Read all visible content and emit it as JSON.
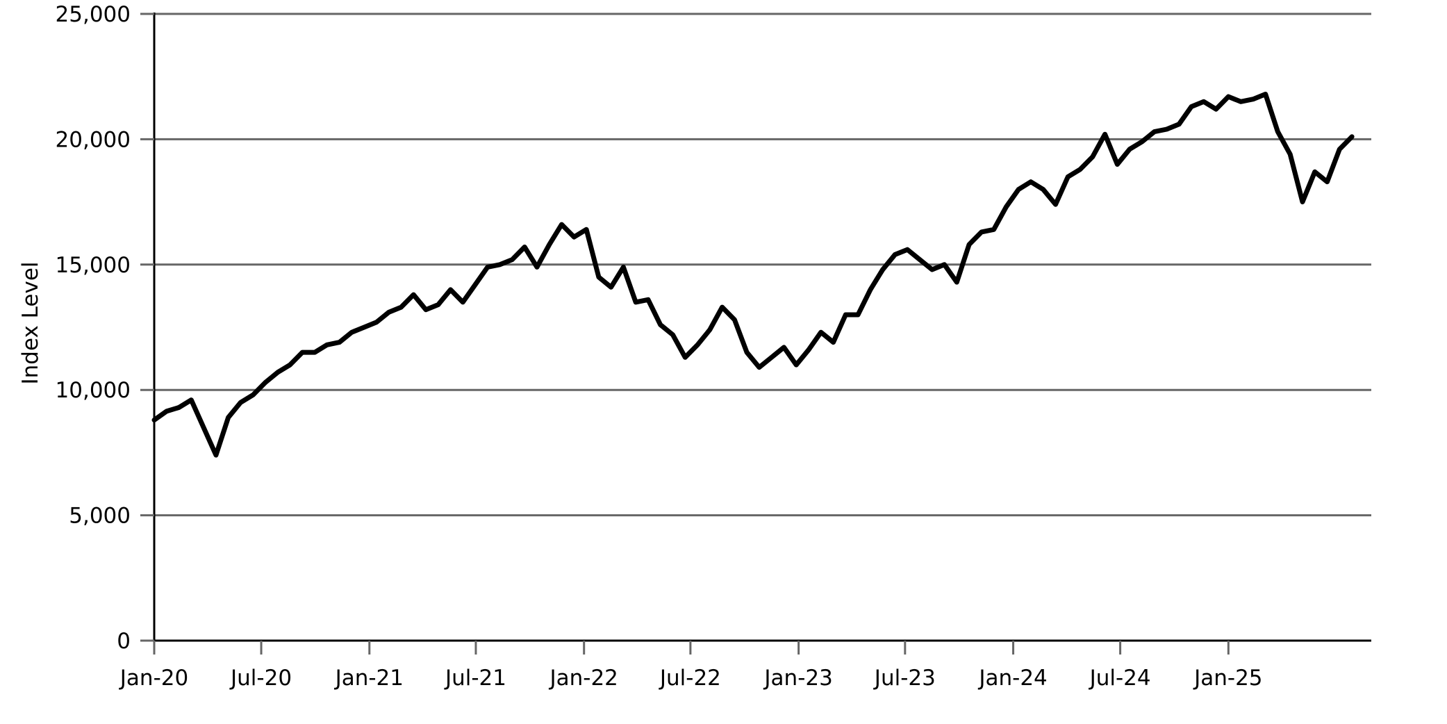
{
  "chart_data": {
    "type": "line",
    "title": "",
    "xlabel": "",
    "ylabel": "Index Level",
    "ylim": [
      0,
      25000
    ],
    "xlim": [
      "2020-01",
      "2025-09"
    ],
    "grid": "horizontal",
    "legend": "none",
    "line_color": "#000000",
    "grid_color": "#666666",
    "y_ticks": [
      {
        "value": 0,
        "label": "0"
      },
      {
        "value": 5000,
        "label": "5,000"
      },
      {
        "value": 10000,
        "label": "10,000"
      },
      {
        "value": 15000,
        "label": "15,000"
      },
      {
        "value": 20000,
        "label": "20,000"
      },
      {
        "value": 25000,
        "label": "25,000"
      }
    ],
    "x_ticks": [
      {
        "value": "2020-01",
        "label": "Jan-20"
      },
      {
        "value": "2020-07",
        "label": "Jul-20"
      },
      {
        "value": "2021-01",
        "label": "Jan-21"
      },
      {
        "value": "2021-07",
        "label": "Jul-21"
      },
      {
        "value": "2022-01",
        "label": "Jan-22"
      },
      {
        "value": "2022-07",
        "label": "Jul-22"
      },
      {
        "value": "2023-01",
        "label": "Jan-23"
      },
      {
        "value": "2023-07",
        "label": "Jul-23"
      },
      {
        "value": "2024-01",
        "label": "Jan-24"
      },
      {
        "value": "2024-07",
        "label": "Jul-24"
      },
      {
        "value": "2025-01",
        "label": "Jan-25"
      }
    ],
    "series": [
      {
        "x": [
          "2020-01-01",
          "2020-01-22",
          "2020-02-12",
          "2020-03-04",
          "2020-03-25",
          "2020-04-15",
          "2020-05-06",
          "2020-05-27",
          "2020-06-17",
          "2020-07-08",
          "2020-07-29",
          "2020-08-19",
          "2020-09-09",
          "2020-09-30",
          "2020-10-21",
          "2020-11-11",
          "2020-12-02",
          "2020-12-23",
          "2021-01-13",
          "2021-02-03",
          "2021-02-24",
          "2021-03-17",
          "2021-04-07",
          "2021-04-28",
          "2021-05-19",
          "2021-06-09",
          "2021-06-30",
          "2021-07-21",
          "2021-08-11",
          "2021-09-01",
          "2021-09-22",
          "2021-10-13",
          "2021-11-03",
          "2021-11-24",
          "2021-12-15",
          "2022-01-05",
          "2022-01-26",
          "2022-02-16",
          "2022-03-09",
          "2022-03-30",
          "2022-04-20",
          "2022-05-11",
          "2022-06-01",
          "2022-06-22",
          "2022-07-13",
          "2022-08-03",
          "2022-08-24",
          "2022-09-14",
          "2022-10-05",
          "2022-10-26",
          "2022-11-16",
          "2022-12-07",
          "2022-12-28",
          "2023-01-18",
          "2023-02-08",
          "2023-03-01",
          "2023-03-22",
          "2023-04-12",
          "2023-05-03",
          "2023-05-24",
          "2023-06-14",
          "2023-07-05",
          "2023-07-26",
          "2023-08-16",
          "2023-09-06",
          "2023-09-27",
          "2023-10-18",
          "2023-11-08",
          "2023-11-29",
          "2023-12-20",
          "2024-01-10",
          "2024-01-31",
          "2024-02-21",
          "2024-03-13",
          "2024-04-03",
          "2024-04-24",
          "2024-05-15",
          "2024-06-05",
          "2024-06-26",
          "2024-07-17",
          "2024-08-07",
          "2024-08-28",
          "2024-09-18",
          "2024-10-09",
          "2024-10-30",
          "2024-11-20",
          "2024-12-11",
          "2025-01-01",
          "2025-01-22",
          "2025-02-12",
          "2025-03-05",
          "2025-03-26",
          "2025-04-16",
          "2025-05-07",
          "2025-05-28",
          "2025-06-18",
          "2025-07-09",
          "2025-07-30"
        ],
        "y": [
          8800,
          9150,
          9300,
          9600,
          8500,
          7400,
          8900,
          9500,
          9800,
          10300,
          10700,
          11000,
          11500,
          11500,
          11800,
          11900,
          12300,
          12500,
          12700,
          13100,
          13300,
          13800,
          13200,
          13400,
          14000,
          13500,
          14200,
          14900,
          15000,
          15200,
          15700,
          14900,
          15800,
          16600,
          16100,
          16400,
          14500,
          14100,
          14900,
          13500,
          13600,
          12600,
          12200,
          11300,
          11800,
          12400,
          13300,
          12800,
          11500,
          10900,
          11300,
          11700,
          11000,
          11600,
          12300,
          11900,
          13000,
          13000,
          14000,
          14800,
          15400,
          15600,
          15200,
          14800,
          15000,
          14300,
          15800,
          16300,
          16400,
          17300,
          18000,
          18300,
          18000,
          17400,
          18500,
          18800,
          19300,
          20200,
          19000,
          19600,
          19900,
          20300,
          20400,
          20600,
          21300,
          21500,
          21200,
          21700,
          21500,
          21600,
          21800,
          20300,
          19400,
          17500,
          18700,
          18300,
          19600,
          20100
        ]
      }
    ]
  }
}
